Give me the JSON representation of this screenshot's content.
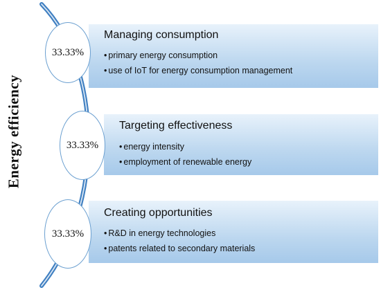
{
  "title": "Energy efficiency",
  "items": [
    {
      "percent": "33.33%",
      "heading": "Managing consumption",
      "bullets": [
        "primary energy consumption",
        "use of IoT for energy consumption management"
      ]
    },
    {
      "percent": "33.33%",
      "heading": "Targeting effectiveness",
      "bullets": [
        "energy intensity",
        "employment of renewable energy"
      ]
    },
    {
      "percent": "33.33%",
      "heading": "Creating opportunities",
      "bullets": [
        "R&D in energy technologies",
        "patents related to secondary materials"
      ]
    }
  ],
  "colors": {
    "curve": "#3f7fc1",
    "circle_border": "#6a9fd0",
    "box_light": "#e8f2fb",
    "box_dark": "#a6c9ea"
  }
}
